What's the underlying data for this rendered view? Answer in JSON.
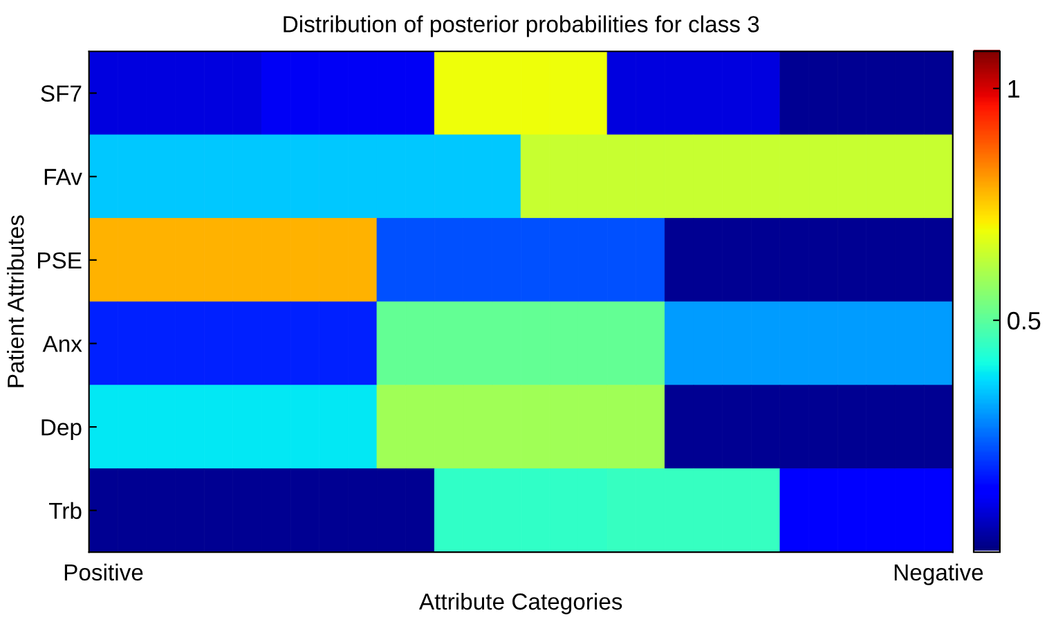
{
  "chart_data": {
    "type": "heatmap",
    "title": "Distribution of posterior probabilities for class 3",
    "xlabel": "Attribute Categories",
    "ylabel": "Patient Attributes",
    "categories": [
      "Positive",
      null,
      null,
      null,
      null,
      null,
      null,
      null,
      null,
      null,
      null,
      null,
      null,
      null,
      null,
      null,
      null,
      null,
      null,
      null,
      null,
      null,
      null,
      null,
      null,
      null,
      null,
      null,
      null,
      "Negative"
    ],
    "y_categories": [
      "SF7",
      "FAv",
      "PSE",
      "Anx",
      "Dep",
      "Trb"
    ],
    "cells": [
      [
        0.09,
        0.09,
        0.09,
        0.09,
        0.09,
        0.09,
        0.11,
        0.11,
        0.11,
        0.11,
        0.11,
        0.11,
        0.69,
        0.69,
        0.69,
        0.69,
        0.69,
        0.69,
        0.09,
        0.09,
        0.09,
        0.09,
        0.09,
        0.09,
        0.02,
        0.02,
        0.02,
        0.02,
        0.02,
        0.02
      ],
      [
        0.35,
        0.35,
        0.35,
        0.35,
        0.35,
        0.35,
        0.35,
        0.35,
        0.35,
        0.35,
        0.35,
        0.35,
        0.35,
        0.35,
        0.35,
        0.64,
        0.64,
        0.64,
        0.64,
        0.64,
        0.64,
        0.64,
        0.64,
        0.64,
        0.64,
        0.64,
        0.64,
        0.64,
        0.64,
        0.64
      ],
      [
        0.78,
        0.78,
        0.78,
        0.78,
        0.78,
        0.78,
        0.78,
        0.78,
        0.78,
        0.78,
        0.22,
        0.22,
        0.22,
        0.22,
        0.22,
        0.22,
        0.22,
        0.22,
        0.22,
        0.22,
        0.02,
        0.02,
        0.02,
        0.02,
        0.02,
        0.02,
        0.02,
        0.02,
        0.02,
        0.02
      ],
      [
        0.17,
        0.17,
        0.17,
        0.17,
        0.17,
        0.17,
        0.17,
        0.17,
        0.17,
        0.17,
        0.51,
        0.51,
        0.51,
        0.51,
        0.51,
        0.51,
        0.51,
        0.51,
        0.51,
        0.51,
        0.3,
        0.3,
        0.3,
        0.3,
        0.3,
        0.3,
        0.3,
        0.3,
        0.3,
        0.3
      ],
      [
        0.38,
        0.38,
        0.38,
        0.38,
        0.38,
        0.38,
        0.38,
        0.38,
        0.38,
        0.38,
        0.59,
        0.59,
        0.59,
        0.59,
        0.59,
        0.59,
        0.59,
        0.59,
        0.59,
        0.59,
        0.02,
        0.02,
        0.02,
        0.02,
        0.02,
        0.02,
        0.02,
        0.02,
        0.02,
        0.02
      ],
      [
        0.02,
        0.02,
        0.02,
        0.02,
        0.02,
        0.02,
        0.02,
        0.02,
        0.02,
        0.02,
        0.02,
        0.02,
        0.44,
        0.44,
        0.44,
        0.44,
        0.44,
        0.44,
        0.45,
        0.45,
        0.45,
        0.45,
        0.45,
        0.45,
        0.12,
        0.12,
        0.12,
        0.12,
        0.12,
        0.12
      ]
    ],
    "clim": [
      0,
      1.08
    ],
    "cticks": [
      0.5,
      1
    ]
  }
}
